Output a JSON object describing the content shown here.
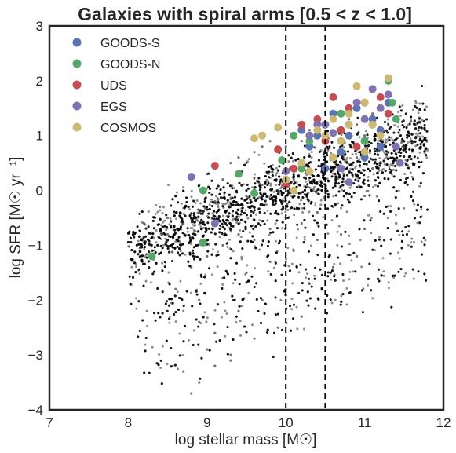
{
  "chart_data": {
    "type": "scatter",
    "title": "Galaxies with spiral arms [0.5 < z < 1.0]",
    "xlabel": "log stellar mass [M☉]",
    "ylabel": "log SFR [M☉ yr⁻¹]",
    "xlim": [
      7,
      12
    ],
    "ylim": [
      -4,
      3
    ],
    "xticks": [
      7,
      8,
      9,
      10,
      11,
      12
    ],
    "yticks": [
      -4,
      -3,
      -2,
      -1,
      0,
      1,
      2,
      3
    ],
    "xtick_labels": [
      "7",
      "8",
      "9",
      "10",
      "11",
      "12"
    ],
    "ytick_labels": [
      "−4",
      "−3",
      "−2",
      "−1",
      "0",
      "1",
      "2",
      "3"
    ],
    "vlines": [
      10.0,
      10.5
    ],
    "grid": false,
    "legend_position": "top-left",
    "background_points": {
      "color": "#000000",
      "description_count": 6000,
      "x": [
        8.2,
        8.4,
        8.5,
        8.6,
        8.7,
        8.8,
        8.9,
        9.0,
        9.1,
        9.2,
        9.3,
        9.4,
        9.5,
        9.6,
        9.7,
        9.8,
        9.9,
        10.0,
        10.1,
        10.2,
        10.3,
        10.4,
        10.5,
        10.6,
        10.7,
        10.8,
        10.9,
        11.0,
        11.1,
        11.2,
        11.3,
        11.5,
        8.3,
        8.5,
        8.7,
        8.9,
        9.1,
        9.3,
        9.5,
        9.7,
        9.9,
        10.1,
        10.3,
        10.5,
        10.7,
        10.9,
        11.1,
        11.3,
        8.8,
        9.0,
        9.2,
        9.4,
        9.6,
        9.8,
        10.0,
        10.2,
        10.4,
        10.6,
        10.8,
        11.0,
        8.6,
        8.9,
        9.2,
        9.5,
        9.8,
        10.1,
        10.4,
        10.7,
        11.0,
        11.4,
        8.9,
        9.1,
        9.4,
        9.7,
        10.0,
        10.3,
        10.6,
        10.9,
        9.0,
        9.3,
        9.6,
        9.9,
        10.2,
        8.7,
        8.9,
        9.1,
        9.3,
        8.8
      ],
      "y": [
        -0.6,
        -0.3,
        -0.5,
        -0.1,
        0.0,
        0.2,
        0.1,
        0.3,
        0.4,
        0.2,
        0.5,
        0.6,
        0.5,
        0.7,
        0.8,
        0.9,
        0.7,
        0.8,
        1.0,
        0.9,
        1.1,
        1.0,
        1.2,
        1.1,
        0.9,
        1.3,
        1.2,
        1.0,
        1.4,
        1.1,
        1.2,
        0.9,
        -1.0,
        -0.8,
        -0.6,
        -0.4,
        -0.2,
        -0.3,
        -0.1,
        0.1,
        0.0,
        0.2,
        0.4,
        0.3,
        0.5,
        0.6,
        0.4,
        0.7,
        -1.4,
        -1.2,
        -1.0,
        -0.8,
        -0.9,
        -0.7,
        -0.5,
        -0.6,
        -0.4,
        -0.3,
        -0.2,
        -0.1,
        -1.8,
        -2.0,
        -1.6,
        -1.5,
        -1.3,
        -1.1,
        -0.9,
        -0.8,
        -0.7,
        -0.6,
        -2.4,
        -2.6,
        -2.2,
        -2.0,
        -1.8,
        -1.7,
        -1.4,
        -1.2,
        -2.9,
        -3.0,
        -2.7,
        -2.5,
        -2.3,
        -3.3,
        -3.5,
        -3.2,
        -3.1,
        -3.7
      ]
    },
    "series": [
      {
        "name": "GOODS-S",
        "color": "#5b74b4",
        "x": [
          10.4,
          10.6,
          10.8,
          10.9,
          11.0,
          11.1,
          11.2,
          11.3,
          10.7,
          10.5,
          10.3,
          10.0,
          10.2,
          11.0,
          10.8,
          11.2
        ],
        "y": [
          1.0,
          1.4,
          1.2,
          1.5,
          0.9,
          1.3,
          1.1,
          1.6,
          0.7,
          0.4,
          0.8,
          0.2,
          1.1,
          0.6,
          1.0,
          0.8
        ]
      },
      {
        "name": "GOODS-N",
        "color": "#55a868",
        "x": [
          8.3,
          8.95,
          8.95,
          9.4,
          9.6,
          9.95,
          10.1,
          10.3,
          10.5,
          10.7,
          11.0,
          11.3,
          11.35,
          11.4,
          10.2,
          10.6
        ],
        "y": [
          -1.2,
          0.0,
          -0.95,
          0.3,
          -0.05,
          0.55,
          1.0,
          0.9,
          1.2,
          1.4,
          0.9,
          2.0,
          1.6,
          1.3,
          0.4,
          0.6
        ]
      },
      {
        "name": "UDS",
        "color": "#c44e52",
        "x": [
          9.1,
          9.9,
          10.1,
          10.2,
          10.4,
          10.6,
          10.7,
          10.8,
          10.9,
          11.0,
          11.1,
          11.2,
          11.3,
          10.5,
          10.3,
          10.0
        ],
        "y": [
          0.45,
          0.75,
          0.4,
          1.2,
          1.3,
          1.7,
          1.1,
          1.5,
          0.8,
          1.6,
          1.2,
          1.7,
          1.4,
          0.9,
          1.0,
          0.1
        ]
      },
      {
        "name": "EGS",
        "color": "#8172b2",
        "x": [
          8.8,
          9.1,
          10.0,
          10.3,
          10.5,
          10.7,
          10.8,
          10.9,
          11.0,
          11.1,
          11.2,
          11.3,
          11.4,
          11.45,
          10.6,
          10.4
        ],
        "y": [
          0.25,
          -0.6,
          0.35,
          1.0,
          1.2,
          0.4,
          0.15,
          1.6,
          1.3,
          1.85,
          1.5,
          1.75,
          0.8,
          0.5,
          1.05,
          1.2
        ]
      },
      {
        "name": "COSMOS",
        "color": "#ccb974",
        "x": [
          9.6,
          9.7,
          9.9,
          10.0,
          10.2,
          10.3,
          10.4,
          10.5,
          10.6,
          10.7,
          10.8,
          10.9,
          11.0,
          11.1,
          11.2,
          11.3,
          10.1,
          10.6,
          10.8,
          11.0
        ],
        "y": [
          0.95,
          1.0,
          1.15,
          0.2,
          0.5,
          0.35,
          1.1,
          1.0,
          1.3,
          0.9,
          1.4,
          1.9,
          1.6,
          1.2,
          1.0,
          2.05,
          0.0,
          0.6,
          1.2,
          0.7
        ]
      }
    ]
  }
}
